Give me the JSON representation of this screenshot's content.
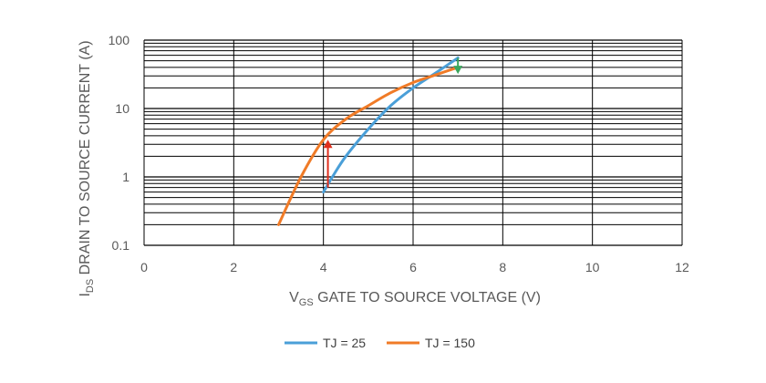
{
  "chart_data": {
    "type": "line",
    "x_axis": {
      "label_main": "V",
      "label_sub": "GS",
      "label_rest": " GATE TO SOURCE VOLTAGE (V)",
      "ticks": [
        "0",
        "2",
        "4",
        "6",
        "8",
        "10",
        "12"
      ],
      "range": [
        0,
        12
      ],
      "scale": "linear"
    },
    "y_axis": {
      "label_main": "I",
      "label_sub": "DS",
      "label_rest": " DRAIN TO SOURCE CURRENT (A)",
      "ticks": [
        "0.1",
        "1",
        "10",
        "100"
      ],
      "range": [
        0.1,
        100
      ],
      "scale": "log"
    },
    "grid": true,
    "legend_position": "bottom",
    "series": [
      {
        "name": "TJ = 25",
        "color": "#4a9fd8",
        "x": [
          4.0,
          4.2,
          4.5,
          5.0,
          5.5,
          6.0,
          6.5,
          7.0
        ],
        "y": [
          0.6,
          1.0,
          2.0,
          5.0,
          11.0,
          20.0,
          33.0,
          55.0
        ]
      },
      {
        "name": "TJ = 150",
        "color": "#f07b27",
        "x": [
          3.0,
          3.5,
          4.0,
          4.5,
          5.0,
          5.5,
          6.0,
          6.5,
          7.0
        ],
        "y": [
          0.2,
          1.0,
          3.5,
          7.0,
          11.0,
          17.0,
          24.0,
          31.0,
          40.0
        ]
      }
    ],
    "annotations": [
      {
        "type": "arrow",
        "color": "#e0301e",
        "from": [
          4.1,
          0.7
        ],
        "to": [
          4.1,
          3.5
        ]
      },
      {
        "type": "arrow",
        "color": "#3aa65c",
        "from": [
          7.0,
          55.0
        ],
        "to": [
          7.0,
          32.0
        ]
      }
    ]
  }
}
